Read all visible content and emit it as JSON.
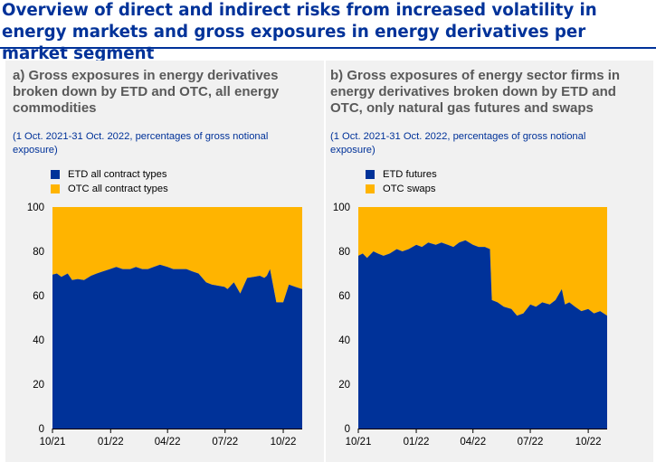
{
  "page": {
    "title": "Overview of direct and indirect risks from increased volatility in energy markets and gross exposures in energy derivatives per market segment",
    "colors": {
      "title": "#003299",
      "panel_bg": "#f1f1f1",
      "panel_title": "#595959",
      "subtitle": "#003299"
    }
  },
  "chart_data": [
    {
      "type": "area",
      "stacked": true,
      "title": "a) Gross exposures in energy derivatives broken down by ETD and OTC, all energy commodities",
      "subtitle": "(1 Oct. 2021-31 Oct. 2022, percentages of gross notional exposure)",
      "xlabel": "",
      "ylabel": "",
      "ylim": [
        0,
        100
      ],
      "yticks": [
        0,
        20,
        40,
        60,
        80,
        100
      ],
      "xlim": [
        "2021-10-01",
        "2022-10-31"
      ],
      "xticks": [
        "10/21",
        "01/22",
        "04/22",
        "07/22",
        "10/22"
      ],
      "xtick_dates": [
        "2021-10-01",
        "2022-01-01",
        "2022-04-01",
        "2022-07-01",
        "2022-10-01"
      ],
      "legend": "top-left",
      "x": [
        "2021-10-01",
        "2021-10-08",
        "2021-10-15",
        "2021-10-25",
        "2021-11-01",
        "2021-11-10",
        "2021-11-20",
        "2021-12-01",
        "2021-12-10",
        "2021-12-20",
        "2021-12-31",
        "2022-01-10",
        "2022-01-20",
        "2022-02-01",
        "2022-02-10",
        "2022-02-20",
        "2022-03-01",
        "2022-03-10",
        "2022-03-20",
        "2022-04-01",
        "2022-04-10",
        "2022-04-20",
        "2022-05-01",
        "2022-05-10",
        "2022-05-20",
        "2022-06-01",
        "2022-06-10",
        "2022-06-20",
        "2022-06-30",
        "2022-07-05",
        "2022-07-15",
        "2022-07-25",
        "2022-08-05",
        "2022-08-15",
        "2022-08-25",
        "2022-09-01",
        "2022-09-05",
        "2022-09-10",
        "2022-09-20",
        "2022-10-01",
        "2022-10-10",
        "2022-10-20",
        "2022-10-31"
      ],
      "series": [
        {
          "name": "ETD all contract types",
          "color": "#003299",
          "values": [
            69.5,
            70,
            68.5,
            70,
            67,
            67.5,
            67,
            69,
            70,
            71,
            72,
            73,
            72,
            72,
            73,
            72,
            72,
            73,
            74,
            73,
            72,
            72,
            72,
            71,
            70,
            66,
            65,
            64.5,
            64,
            63,
            66,
            61,
            68,
            68.5,
            69,
            68,
            69,
            72,
            57,
            57,
            65,
            64,
            63
          ]
        },
        {
          "name": "OTC all contract types",
          "color": "#ffb400",
          "values": [
            30.5,
            30,
            31.5,
            30,
            33,
            32.5,
            33,
            31,
            30,
            29,
            28,
            27,
            28,
            28,
            27,
            28,
            28,
            27,
            26,
            27,
            28,
            28,
            28,
            29,
            30,
            34,
            35,
            35.5,
            36,
            37,
            34,
            39,
            32,
            31.5,
            31,
            32,
            31,
            28,
            43,
            43,
            35,
            36,
            37
          ]
        }
      ]
    },
    {
      "type": "area",
      "stacked": true,
      "title": "b) Gross exposures of energy sector firms in energy derivatives broken down by ETD and OTC, only natural gas futures and swaps",
      "subtitle": "(1 Oct. 2021-31 Oct. 2022, percentages of gross notional exposure)",
      "xlabel": "",
      "ylabel": "",
      "ylim": [
        0,
        100
      ],
      "yticks": [
        0,
        20,
        40,
        60,
        80,
        100
      ],
      "xlim": [
        "2021-10-01",
        "2022-10-31"
      ],
      "xticks": [
        "10/21",
        "01/22",
        "04/22",
        "07/22",
        "10/22"
      ],
      "xtick_dates": [
        "2021-10-01",
        "2022-01-01",
        "2022-04-01",
        "2022-07-01",
        "2022-10-01"
      ],
      "legend": "top-left",
      "x": [
        "2021-10-01",
        "2021-10-08",
        "2021-10-15",
        "2021-10-25",
        "2021-11-01",
        "2021-11-10",
        "2021-11-20",
        "2021-12-01",
        "2021-12-10",
        "2021-12-20",
        "2022-01-01",
        "2022-01-10",
        "2022-01-20",
        "2022-02-01",
        "2022-02-10",
        "2022-02-20",
        "2022-03-01",
        "2022-03-10",
        "2022-03-20",
        "2022-04-01",
        "2022-04-10",
        "2022-04-20",
        "2022-04-28",
        "2022-05-01",
        "2022-05-10",
        "2022-05-20",
        "2022-06-01",
        "2022-06-10",
        "2022-06-20",
        "2022-07-01",
        "2022-07-10",
        "2022-07-20",
        "2022-08-01",
        "2022-08-10",
        "2022-08-20",
        "2022-08-25",
        "2022-09-01",
        "2022-09-10",
        "2022-09-20",
        "2022-10-01",
        "2022-10-10",
        "2022-10-20",
        "2022-10-31"
      ],
      "series": [
        {
          "name": "ETD futures",
          "color": "#003299",
          "values": [
            78,
            79,
            77,
            80,
            79,
            78,
            79,
            81,
            80,
            81,
            83,
            82,
            84,
            83,
            84,
            83,
            82,
            84,
            85,
            83,
            82,
            82,
            81,
            58,
            57,
            55,
            54,
            51,
            52,
            56,
            55,
            57,
            56,
            58,
            63,
            56,
            57,
            55,
            53,
            54,
            52,
            53,
            51
          ]
        },
        {
          "name": "OTC swaps",
          "color": "#ffb400",
          "values": [
            22,
            21,
            23,
            20,
            21,
            22,
            21,
            19,
            20,
            19,
            17,
            18,
            16,
            17,
            16,
            17,
            18,
            16,
            15,
            17,
            18,
            18,
            19,
            42,
            43,
            45,
            46,
            49,
            48,
            44,
            45,
            43,
            44,
            42,
            37,
            44,
            43,
            45,
            47,
            46,
            48,
            47,
            49
          ]
        }
      ]
    }
  ]
}
